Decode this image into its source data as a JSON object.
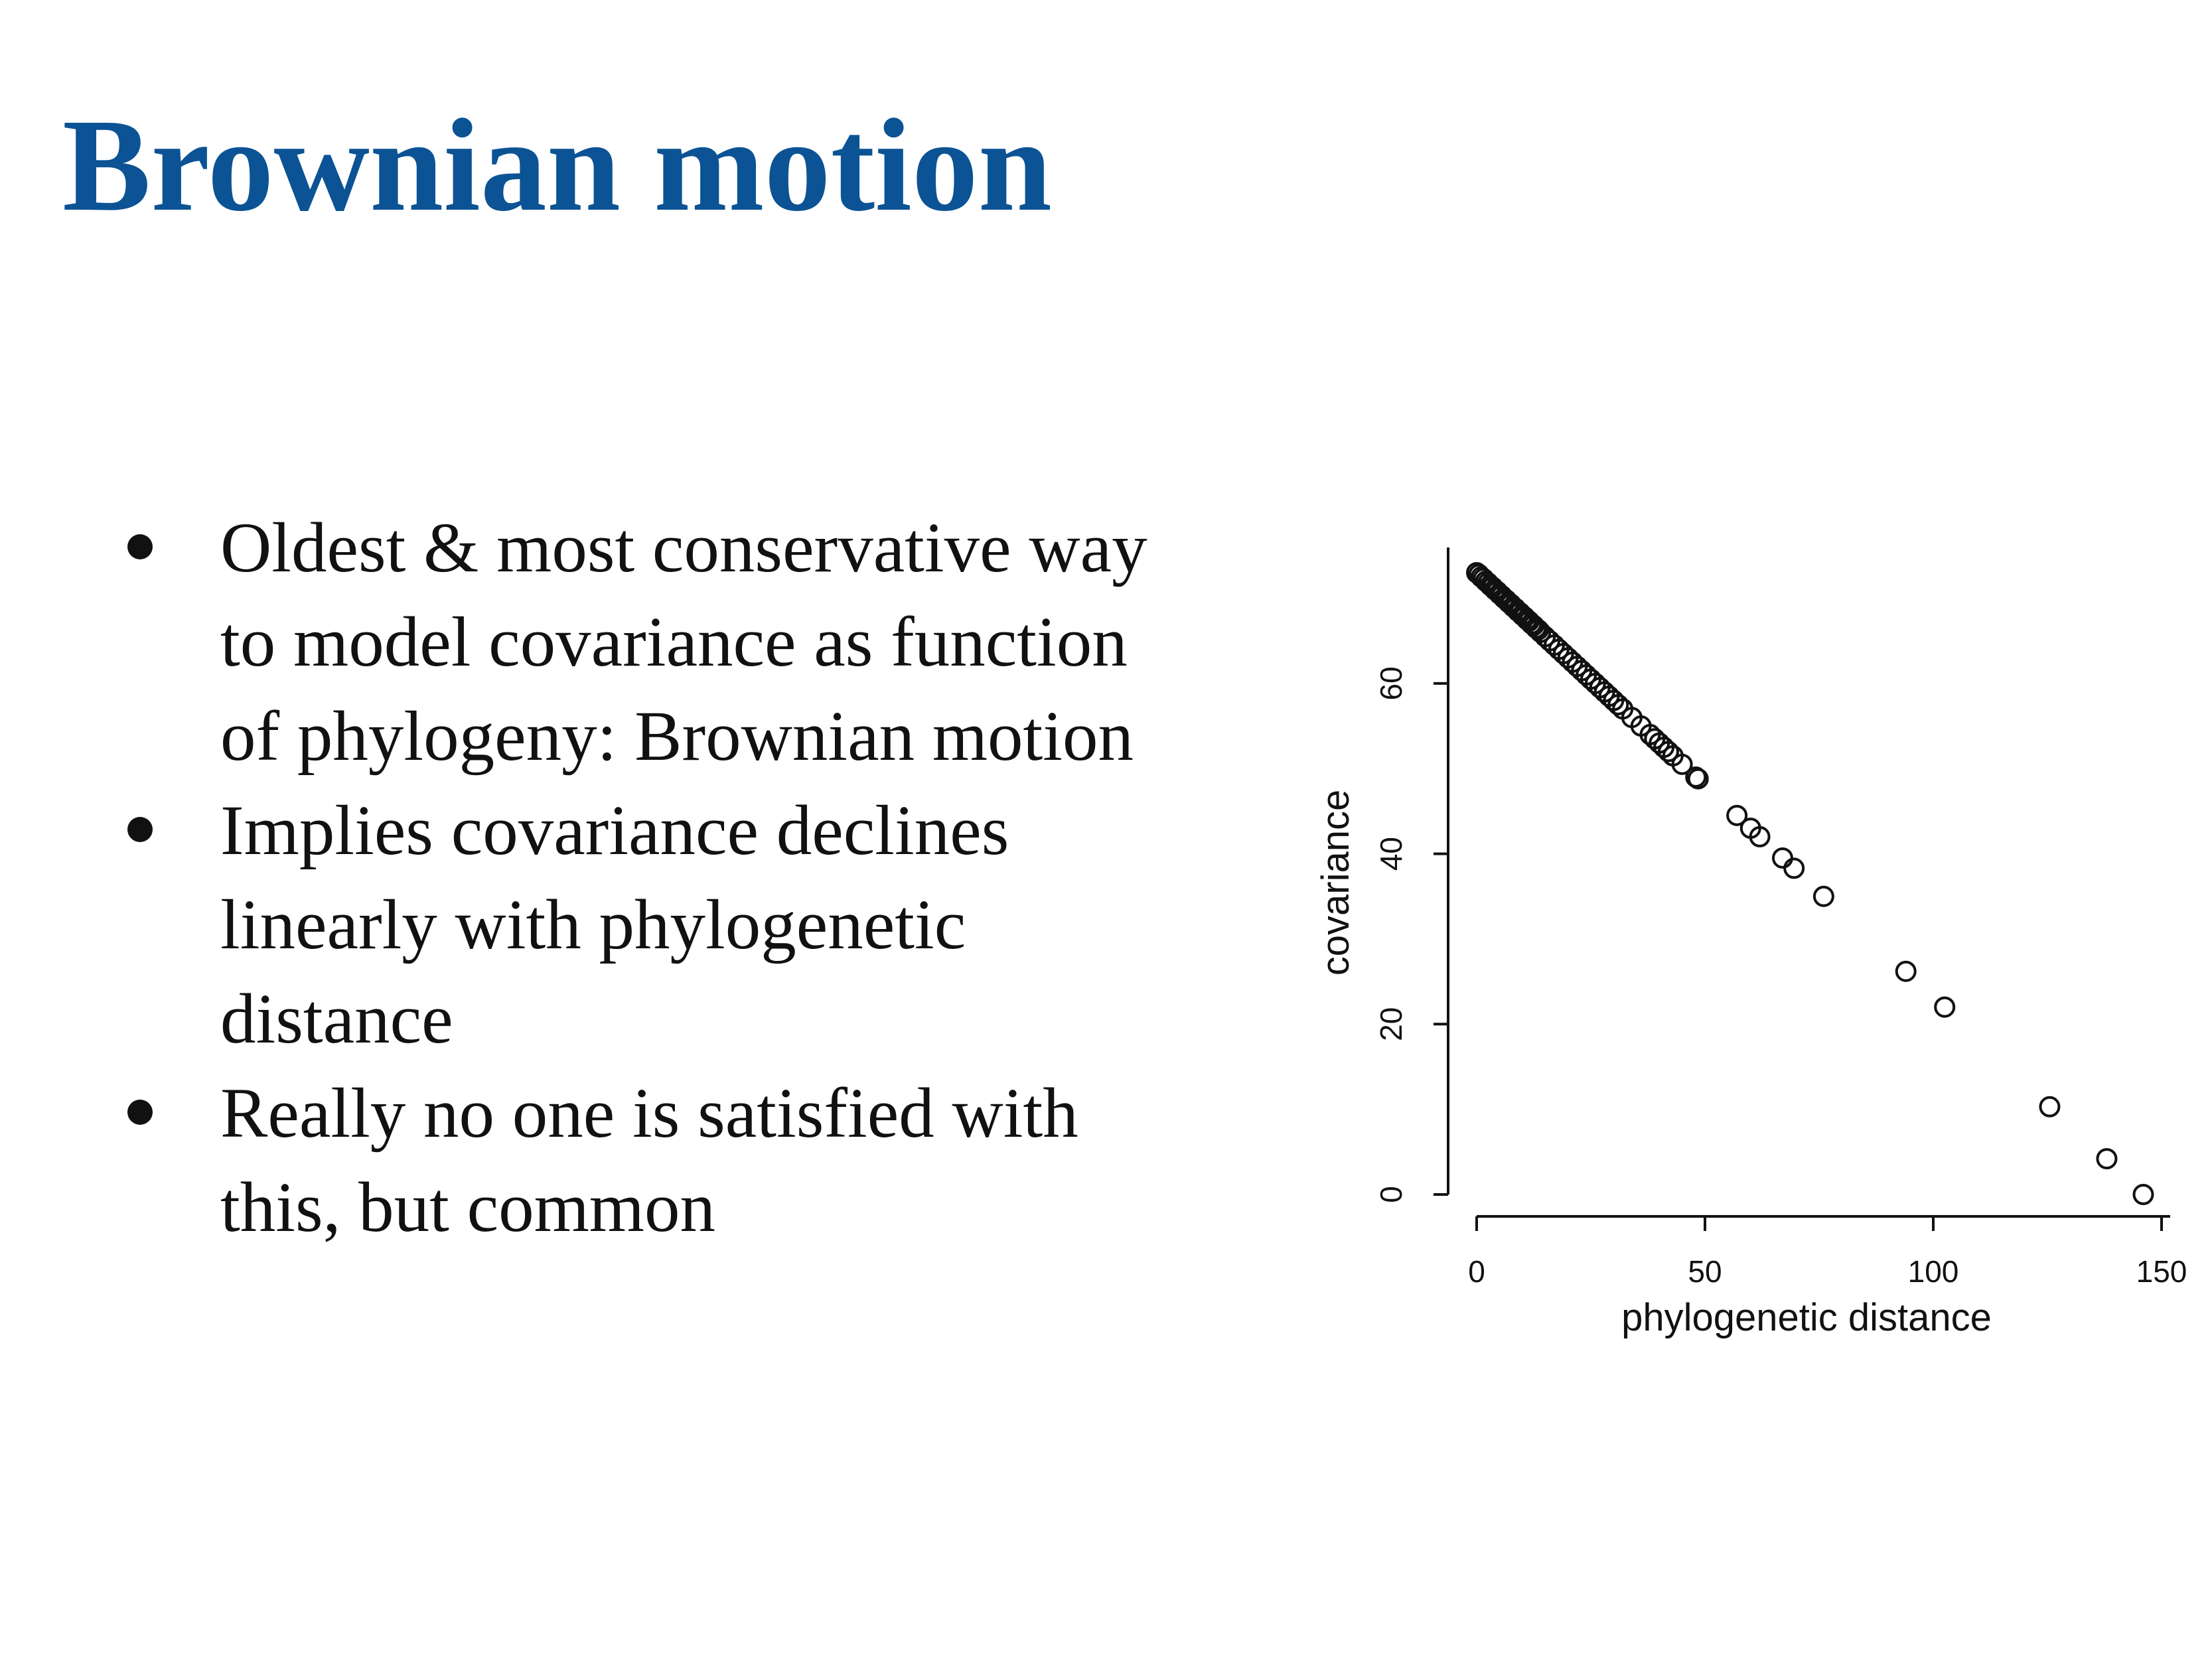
{
  "slide": {
    "title": "Brownian motion",
    "bullets": [
      "Oldest & most conservative way\nto model covariance as function\nof phylogeny: Brownian motion",
      "Implies covariance declines\nlinearly with phylogenetic\ndistance",
      "Really no one is satisfied with\nthis, but common"
    ]
  },
  "chart_data": {
    "type": "scatter",
    "title": "",
    "xlabel": "phylogenetic distance",
    "ylabel": "covariance",
    "xlim": [
      0,
      150
    ],
    "ylim": [
      0,
      73
    ],
    "xticks": [
      0,
      50,
      100,
      150
    ],
    "yticks": [
      0,
      20,
      40,
      60
    ],
    "marker": "open-circle",
    "marker_color": "#111111",
    "grid": false,
    "points": [
      [
        0,
        73
      ],
      [
        0.5,
        72.8
      ],
      [
        1,
        72.5
      ],
      [
        1.5,
        72.3
      ],
      [
        2,
        72
      ],
      [
        2.5,
        71.8
      ],
      [
        3,
        71.5
      ],
      [
        3.5,
        71.3
      ],
      [
        4,
        71
      ],
      [
        4.5,
        70.8
      ],
      [
        5,
        70.5
      ],
      [
        5.5,
        70.3
      ],
      [
        6,
        70
      ],
      [
        6.5,
        69.8
      ],
      [
        7,
        69.5
      ],
      [
        7.5,
        69.3
      ],
      [
        8,
        69
      ],
      [
        8.5,
        68.8
      ],
      [
        9,
        68.5
      ],
      [
        9.5,
        68.3
      ],
      [
        10,
        68
      ],
      [
        10.5,
        67.8
      ],
      [
        11,
        67.5
      ],
      [
        11.5,
        67.3
      ],
      [
        12,
        67
      ],
      [
        12.5,
        66.8
      ],
      [
        13,
        66.5
      ],
      [
        13.5,
        66.3
      ],
      [
        14,
        66
      ],
      [
        15,
        65.5
      ],
      [
        16,
        65
      ],
      [
        17,
        64.5
      ],
      [
        18,
        64
      ],
      [
        19,
        63.5
      ],
      [
        20,
        63
      ],
      [
        21,
        62.5
      ],
      [
        22,
        62
      ],
      [
        23,
        61.5
      ],
      [
        24,
        61
      ],
      [
        25,
        60.5
      ],
      [
        26,
        60
      ],
      [
        27,
        59.5
      ],
      [
        28,
        59
      ],
      [
        29,
        58.5
      ],
      [
        30,
        58
      ],
      [
        31,
        57.5
      ],
      [
        32,
        57
      ],
      [
        34,
        56
      ],
      [
        36,
        55
      ],
      [
        38,
        54
      ],
      [
        39,
        53.5
      ],
      [
        40,
        53
      ],
      [
        41,
        52.5
      ],
      [
        42,
        52
      ],
      [
        43,
        51.5
      ],
      [
        45,
        50.5
      ],
      [
        48,
        49
      ],
      [
        48.5,
        48.8
      ],
      [
        57,
        44.5
      ],
      [
        60,
        43
      ],
      [
        62,
        42
      ],
      [
        67,
        39.5
      ],
      [
        69.5,
        38.3
      ],
      [
        76,
        35
      ],
      [
        94,
        26.2
      ],
      [
        102.5,
        22
      ],
      [
        125.5,
        10.3
      ],
      [
        138,
        4.2
      ],
      [
        146,
        0
      ]
    ]
  }
}
